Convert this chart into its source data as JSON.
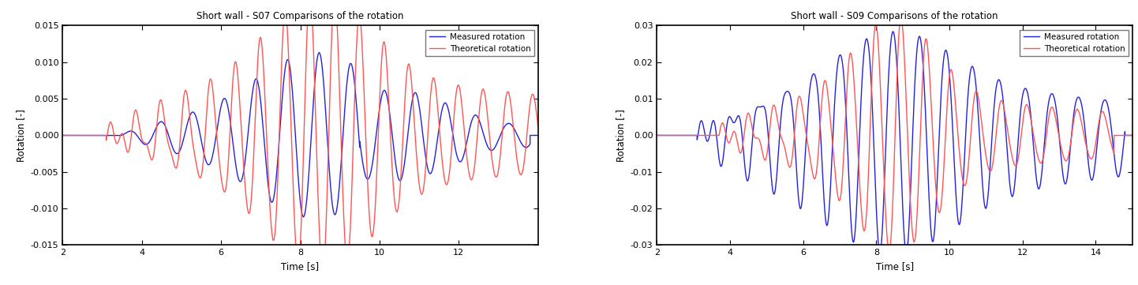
{
  "title1": "Short wall - S07 Comparisons of the rotation",
  "title2": "Short wall - S09 Comparisons of the rotation",
  "xlabel": "Time [s]",
  "ylabel": "Rotation [-]",
  "legend_theoretical": "Theoretical rotation",
  "legend_measured": "Measured rotation",
  "color_theoretical": "#FF5555",
  "color_measured": "#2222DD",
  "plot1": {
    "xlim": [
      2,
      14
    ],
    "ylim": [
      -0.015,
      0.015
    ],
    "yticks": [
      -0.015,
      -0.01,
      -0.005,
      0,
      0.005,
      0.01,
      0.015
    ],
    "xticks": [
      2,
      4,
      6,
      8,
      10,
      12
    ]
  },
  "plot2": {
    "xlim": [
      2,
      15
    ],
    "ylim": [
      -0.03,
      0.03
    ],
    "yticks": [
      -0.03,
      -0.02,
      -0.01,
      0,
      0.01,
      0.02,
      0.03
    ],
    "xticks": [
      2,
      4,
      6,
      8,
      10,
      12,
      14
    ]
  },
  "background_color": "#ffffff",
  "line_width": 1.0
}
